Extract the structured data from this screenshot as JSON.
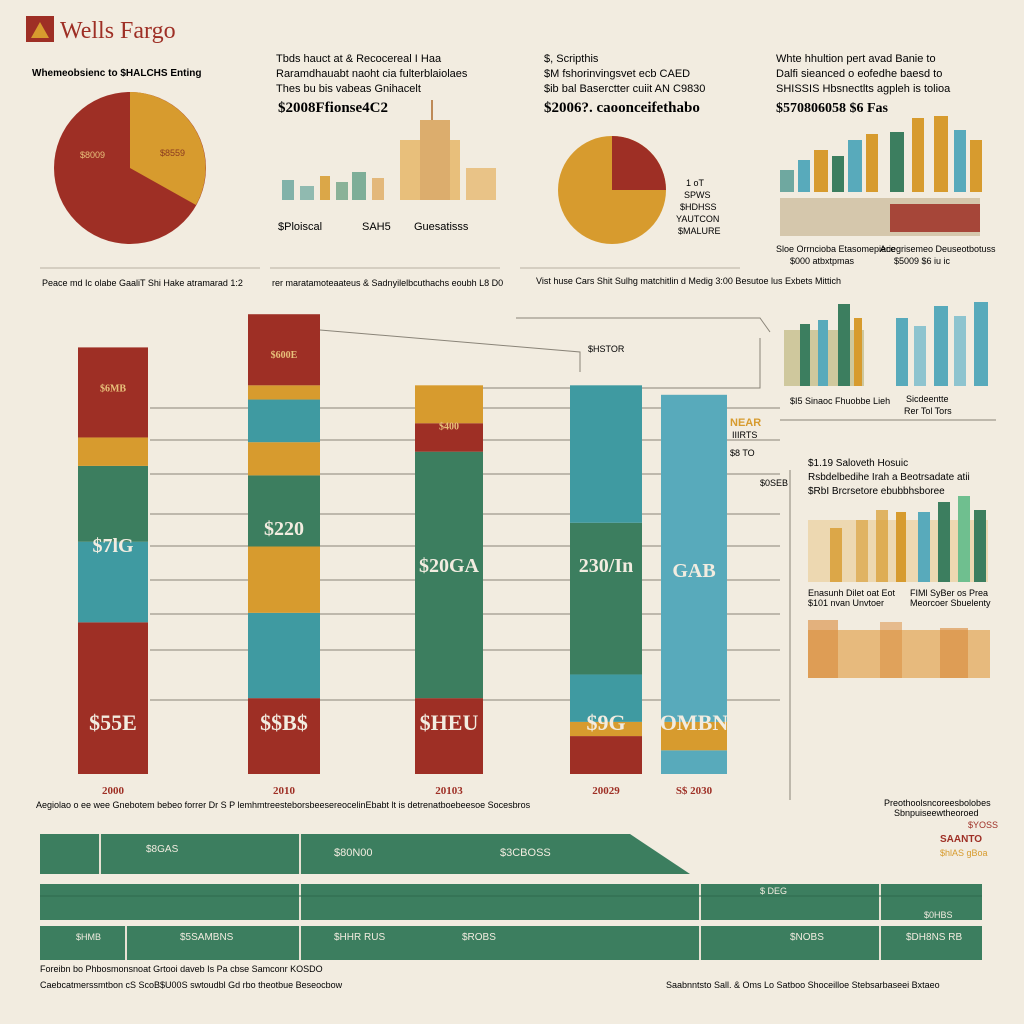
{
  "brand": {
    "name": "Wells Fargo"
  },
  "colors": {
    "background": "#f2ece0",
    "red": "#9e2f25",
    "gold": "#d79b2e",
    "teal": "#3f9aa1",
    "green": "#3c7e5f",
    "lightTeal": "#58aabb",
    "gray": "#8a8478"
  },
  "header_left": {
    "text": "Whemeobsienc to $HALCHS Enting"
  },
  "pie1": {
    "slice_labels": [
      "$8009",
      "$8559"
    ],
    "caption": "Peace md Ic olabe GaaliT Shi Hake atramarad 1:2"
  },
  "top_mid": {
    "lines": [
      "Tbds hauct at & Recocereal I Haa",
      "Raramdhauabt naoht cia fulterblaiolaes",
      "Thes bu bis vabeas Gnihacelt"
    ],
    "headline": "$2008Ffionse4C2",
    "skyline_labels": [
      "$Ploiscal",
      "SAH5",
      "Guesatisss"
    ],
    "caption": "rer maratamoteaateus & Sadnyilelbcuthachs eoubh L8 D0"
  },
  "top_center": {
    "lines": [
      "$, Scripthis",
      "$M fshorinvingsvet ecb CAED",
      "$ib bal Baserctter cuiit AN C9830"
    ],
    "headline": "$2006?. caoonceifethabo",
    "side_labels": [
      "1 oT",
      "SPWS",
      "$HDHSS",
      "YAUTCON",
      "$MALURE"
    ],
    "caption": "Vist huse Cars Shit Sulhg matchitlin d Medig 3:00 Besutoe lus Exbets Mittich"
  },
  "top_right": {
    "lines": [
      "Whte hhultion pert avad Banie to",
      "Dalfi sieanced o eofedhe baesd to",
      "SHISSIS Hbsnectlts agpleh is tolioa"
    ],
    "headline": "$570806058 $6 Fas",
    "captions": [
      "Sloe Orrncioba Etasomepiece",
      "$000 atbxtpmas",
      "Ariegrisemeo Deuseotbotuss",
      "$5009 $6 iu ic"
    ]
  },
  "chart_data": {
    "type": "bar",
    "stacked": true,
    "categories": [
      "2000",
      "2010",
      "20103",
      "20029",
      "S$ 2030"
    ],
    "ylim": [
      0,
      100
    ],
    "series": [
      {
        "name": "",
        "color": "#9e2f25",
        "values": [
          0,
          0,
          0,
          0,
          0
        ]
      }
    ],
    "bars": [
      {
        "category": "2000",
        "top_label": "$6MB",
        "value_label": "$7lG",
        "bottom_label": "$55E",
        "segments": [
          {
            "color": "#9e2f25",
            "value": 32
          },
          {
            "color": "#3f9aa1",
            "value": 17
          },
          {
            "color": "#3c7e5f",
            "value": 16
          },
          {
            "color": "#d79b2e",
            "value": 6
          },
          {
            "color": "#9e2f25",
            "value": 19
          }
        ]
      },
      {
        "category": "2010",
        "top_label": "$600E",
        "value_label": "$220",
        "bottom_label": "$$B$",
        "segments": [
          {
            "color": "#9e2f25",
            "value": 16
          },
          {
            "color": "#3f9aa1",
            "value": 18
          },
          {
            "color": "#d79b2e",
            "value": 14
          },
          {
            "color": "#3c7e5f",
            "value": 15
          },
          {
            "color": "#d79b2e",
            "value": 7
          },
          {
            "color": "#3f9aa1",
            "value": 9
          },
          {
            "color": "#d79b2e",
            "value": 3
          },
          {
            "color": "#9e2f25",
            "value": 15
          }
        ]
      },
      {
        "category": "20103",
        "top_label": "$400",
        "value_label": "$20GA",
        "bottom_label": "$HEU",
        "segments": [
          {
            "color": "#9e2f25",
            "value": 16
          },
          {
            "color": "#3c7e5f",
            "value": 52
          },
          {
            "color": "#9e2f25",
            "value": 6
          },
          {
            "color": "#d79b2e",
            "value": 8
          }
        ]
      },
      {
        "category": "20029",
        "top_label": "",
        "value_label": "230/In",
        "bottom_label": "$9G",
        "segments": [
          {
            "color": "#9e2f25",
            "value": 8
          },
          {
            "color": "#d79b2e",
            "value": 3
          },
          {
            "color": "#3f9aa1",
            "value": 10
          },
          {
            "color": "#3c7e5f",
            "value": 32
          },
          {
            "color": "#3f9aa1",
            "value": 29
          }
        ]
      },
      {
        "category": "S$ 2030",
        "top_label": "",
        "value_label": "GAB",
        "bottom_label": "SOMBNS",
        "segments": [
          {
            "color": "#58aabb",
            "value": 5
          },
          {
            "color": "#d79b2e",
            "value": 6
          },
          {
            "color": "#58aabb",
            "value": 69
          }
        ]
      }
    ]
  },
  "middle_labels": {
    "connector": "$HSTOR",
    "side_a": "NEAR",
    "side_b": "IIIRTS",
    "side_c": "$8 TO",
    "side_d": "$0SEB"
  },
  "right_middle": {
    "captions": [
      "$I5 Sinaoc Fhuobbe Lieh",
      "Sicdeentte",
      "Rer Tol Tors"
    ],
    "notes": [
      "$1.19  Saloveth Hosuic",
      "Rsbdelbedihe Irah a Beotrsadate atii",
      "$RbI Brcrsetore ebubbhsboree"
    ],
    "bottom_captions": [
      "Enasunh Dilet oat Eot",
      "$101 nvan Unvtoer",
      "FIMl SyBer os Prea",
      "Meorcoer Sbuelenty"
    ]
  },
  "bottom_intro": "Aegiolao o ee wee Gnebotem bebeo forrer Dr S P lemhmtreesteborsbeesereocelinEbabt lt is detrenatboebeesoe Socesbros",
  "bottom_bands": {
    "row1": [
      "$8GAS",
      "$80N00",
      "$3CBOSS"
    ],
    "row2": [
      "$ DEG",
      "$0HBS"
    ],
    "row3": [
      "$HMB",
      "$5SAMBNS",
      "$HHR RUS",
      "$ROBS",
      "$NOBS",
      "$DH8NS RB"
    ]
  },
  "bottom_right_notes": [
    "Preothoolsncoreesbolobes",
    "Sbnpuiseewtheoroed",
    "$YOSS",
    "SAANTO",
    "$hlAS gBoa"
  ],
  "footer": {
    "line1": "Foreibn bo Phbosmonsnoat Grtooi daveb Is Pa cbse Samconr KOSDO",
    "line2": "Caebcatmerssmtbon cS ScoB$U00S swtoudbl Gd rbo theotbue Beseocbow",
    "right": "Saabnntsto Sall. & Oms Lo Satboo Shoceilloe Stebsarbaseei Bxtaeo"
  }
}
